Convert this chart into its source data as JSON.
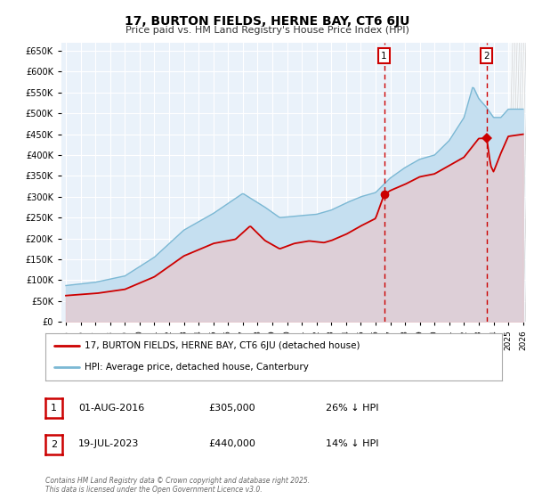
{
  "title": "17, BURTON FIELDS, HERNE BAY, CT6 6JU",
  "subtitle": "Price paid vs. HM Land Registry's House Price Index (HPI)",
  "hpi_color": "#7BB8D4",
  "hpi_fill_color": "#C5DFF0",
  "price_color": "#CC0000",
  "plot_bg_color": "#EAF2FA",
  "ylim": [
    0,
    670000
  ],
  "yticks": [
    0,
    50000,
    100000,
    150000,
    200000,
    250000,
    300000,
    350000,
    400000,
    450000,
    500000,
    550000,
    600000,
    650000
  ],
  "sale1_date_num": 2016.58,
  "sale1_price": 305000,
  "sale2_date_num": 2023.54,
  "sale2_price": 440000,
  "legend_label_price": "17, BURTON FIELDS, HERNE BAY, CT6 6JU (detached house)",
  "legend_label_hpi": "HPI: Average price, detached house, Canterbury",
  "note1_date": "01-AUG-2016",
  "note1_price": "£305,000",
  "note1_pct": "26% ↓ HPI",
  "note2_date": "19-JUL-2023",
  "note2_price": "£440,000",
  "note2_pct": "14% ↓ HPI",
  "footer": "Contains HM Land Registry data © Crown copyright and database right 2025.\nThis data is licensed under the Open Government Licence v3.0.",
  "xmin": 1995,
  "xmax": 2026
}
